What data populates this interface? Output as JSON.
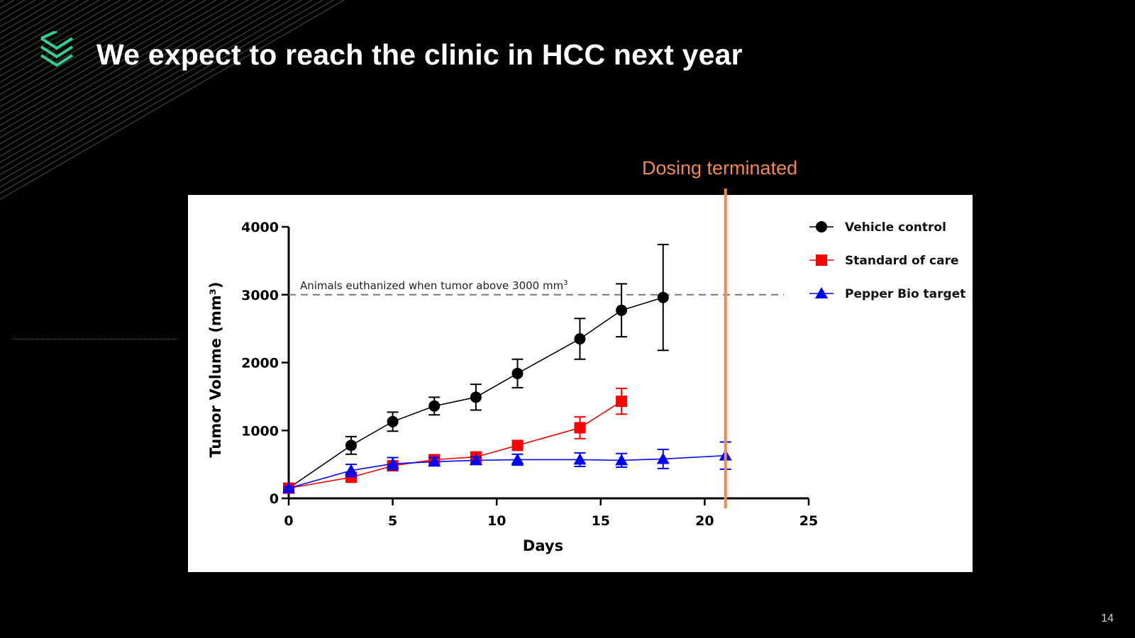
{
  "slide": {
    "title": "We expect to reach the clinic in HCC next year",
    "page_number": "14",
    "logo_icon": "stacked-chevrons-icon",
    "accent_color": "#2ecf8f"
  },
  "chart_data": {
    "type": "line",
    "xlabel": "Days",
    "ylabel": "Tumor Volume (mm³)",
    "xlim": [
      0,
      25
    ],
    "ylim": [
      0,
      4000
    ],
    "xticks": [
      "0",
      "5",
      "10",
      "15",
      "20",
      "25"
    ],
    "yticks": [
      "0",
      "1000",
      "2000",
      "3000",
      "4000"
    ],
    "grid": false,
    "legend_position": "top-right",
    "threshold": {
      "y": 3000,
      "label": "Animals euthanized when tumor above 3000 mm",
      "label_sup": "3"
    },
    "annotation": {
      "x": 21,
      "label": "Dosing terminated",
      "color": "#f0894f"
    },
    "series": [
      {
        "name": "Vehicle control",
        "color": "#000000",
        "marker": "circle",
        "x": [
          0,
          3,
          5,
          7,
          9,
          11,
          14,
          16,
          18
        ],
        "y": [
          150,
          780,
          1130,
          1360,
          1490,
          1840,
          2350,
          2770,
          2960
        ],
        "err": [
          30,
          130,
          140,
          130,
          190,
          210,
          300,
          390,
          780
        ]
      },
      {
        "name": "Standard of care",
        "color": "#ff0000",
        "marker": "square",
        "x": [
          0,
          3,
          5,
          7,
          9,
          11,
          14,
          16
        ],
        "y": [
          150,
          310,
          480,
          570,
          610,
          780,
          1040,
          1430
        ],
        "err": [
          20,
          50,
          50,
          50,
          50,
          60,
          160,
          190
        ]
      },
      {
        "name": "Pepper Bio target",
        "color": "#0000ff",
        "marker": "triangle",
        "x": [
          0,
          3,
          5,
          7,
          9,
          11,
          14,
          16,
          18,
          21
        ],
        "y": [
          150,
          410,
          510,
          540,
          560,
          570,
          570,
          560,
          580,
          630
        ],
        "err": [
          20,
          90,
          90,
          60,
          50,
          80,
          100,
          100,
          140,
          200
        ]
      }
    ]
  }
}
